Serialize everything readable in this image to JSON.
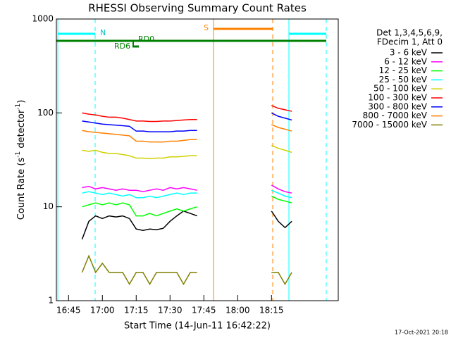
{
  "chart_data": {
    "type": "line",
    "title": "RHESSI Observing Summary Count Rates",
    "x_label": "Start Time (14-Jun-11 16:42:22)",
    "y_label_parts": [
      "Count Rate (s",
      "-1",
      " detector",
      "-1",
      ")"
    ],
    "footer": "17-Oct-2021 20:18",
    "legend_title": [
      "Det 1,3,4,5,6,9,",
      "FDecim 1, Att 0"
    ],
    "annotations": [
      "N",
      "S",
      "RD0",
      "RD6"
    ],
    "log_y": true,
    "ylim": [
      1,
      1000
    ],
    "yticks": [
      1,
      10,
      100,
      1000
    ],
    "xlim": [
      999.6,
      1124.6
    ],
    "xticks": [
      {
        "value": 1005,
        "label": "16:45"
      },
      {
        "value": 1020,
        "label": "17:00"
      },
      {
        "value": 1035,
        "label": "17:15"
      },
      {
        "value": 1050,
        "label": "17:30"
      },
      {
        "value": 1065,
        "label": "17:45"
      },
      {
        "value": 1080,
        "label": "18:00"
      },
      {
        "value": 1095,
        "label": "18:15"
      }
    ],
    "x": [
      1011,
      1014,
      1017,
      1020,
      1023,
      1026,
      1029,
      1032,
      1035,
      1038,
      1041,
      1044,
      1047,
      1050,
      1053,
      1056,
      1059,
      1062,
      1080,
      1095,
      1098,
      1101,
      1104
    ],
    "series": [
      {
        "name": "3 - 6 keV",
        "color": "#000000",
        "values": [
          4.5,
          7,
          8,
          7.5,
          8,
          7.8,
          8,
          7.5,
          5.8,
          5.6,
          5.8,
          5.7,
          5.9,
          7,
          8,
          9,
          8.5,
          8,
          null,
          9,
          7,
          6,
          7
        ]
      },
      {
        "name": "6 - 12 keV",
        "color": "#ff00ff",
        "values": [
          16,
          16.5,
          15.5,
          16,
          15.5,
          15,
          15.5,
          15,
          15,
          14.5,
          15,
          15.5,
          15,
          16,
          15.5,
          16,
          15.5,
          15,
          null,
          17,
          15.5,
          14.5,
          14
        ]
      },
      {
        "name": "12 - 25 keV",
        "color": "#00ff00",
        "values": [
          10,
          10.5,
          11,
          10.5,
          11,
          10.5,
          11,
          10.5,
          8,
          8,
          8.5,
          8,
          8.5,
          9,
          9.5,
          9,
          9.5,
          10,
          null,
          13,
          12,
          11.5,
          11
        ]
      },
      {
        "name": "25 - 50 keV",
        "color": "#00ffff",
        "values": [
          14,
          14.5,
          14,
          13.5,
          14,
          13.5,
          13,
          13.5,
          12.5,
          12.5,
          13,
          12.5,
          13,
          13.5,
          14,
          13.5,
          14,
          14,
          null,
          15,
          14,
          13,
          12.5
        ]
      },
      {
        "name": "50 - 100 keV",
        "color": "#d0d000",
        "values": [
          40,
          39,
          40,
          38,
          37,
          37,
          36,
          35,
          33,
          33,
          32.5,
          33,
          33,
          34,
          34,
          34.5,
          35,
          35,
          null,
          45,
          42,
          40,
          38
        ]
      },
      {
        "name": "100 - 300 keV",
        "color": "#ff0000",
        "values": [
          100,
          97,
          95,
          92,
          90,
          90,
          88,
          85,
          82,
          82,
          81,
          81,
          82,
          82,
          83,
          84,
          85,
          85,
          null,
          120,
          112,
          108,
          104
        ]
      },
      {
        "name": "300 - 800 keV",
        "color": "#0000ff",
        "values": [
          82,
          80,
          78,
          76,
          75,
          74,
          73,
          72,
          64,
          64,
          63,
          63,
          63,
          63,
          64,
          64,
          65,
          65,
          null,
          100,
          92,
          88,
          84
        ]
      },
      {
        "name": "800 - 7000 keV",
        "color": "#ff8000",
        "values": [
          65,
          63,
          62,
          61,
          60,
          59,
          58,
          57,
          50,
          50,
          49,
          49,
          49,
          50,
          50,
          51,
          52,
          52,
          null,
          75,
          70,
          67,
          64
        ]
      },
      {
        "name": "7000 - 15000 keV",
        "color": "#808000",
        "values": [
          2,
          3,
          2,
          2.5,
          2,
          2,
          2,
          1.5,
          2,
          2,
          1.5,
          2,
          2,
          2,
          2,
          1.5,
          2,
          2,
          null,
          2,
          2,
          1.5,
          2
        ]
      }
    ]
  }
}
